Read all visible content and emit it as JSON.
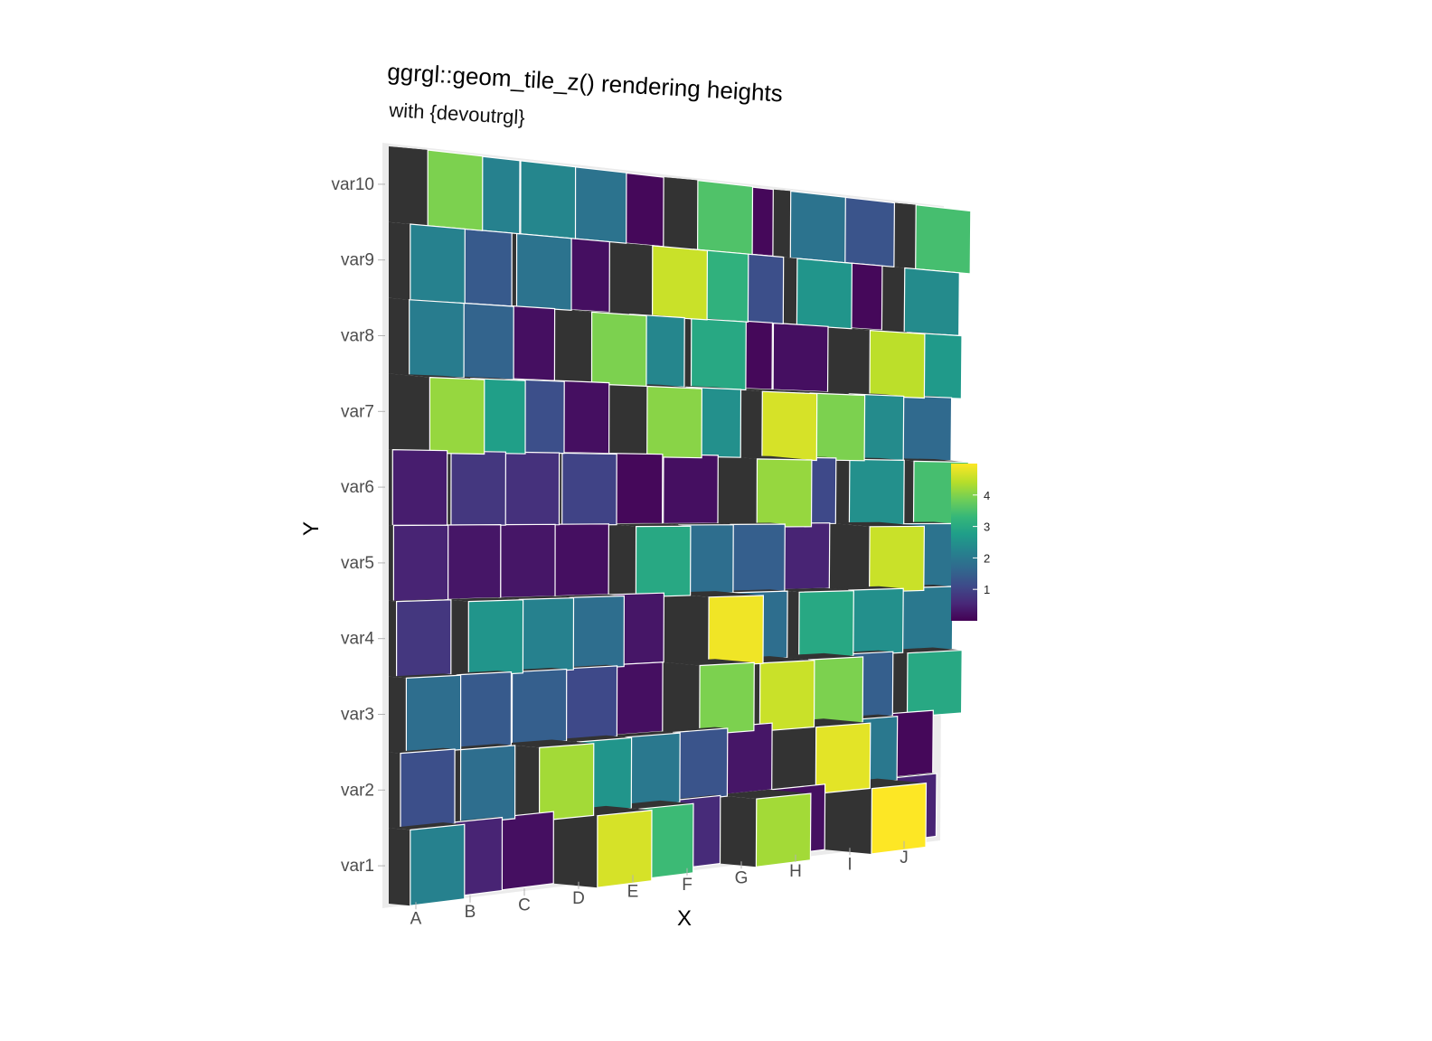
{
  "chart_data": {
    "type": "heatmap",
    "title": "ggrgl::geom_tile_z() rendering heights",
    "subtitle": "with {devoutrgl}",
    "xlabel": "X",
    "ylabel": "Y",
    "x_categories": [
      "A",
      "B",
      "C",
      "D",
      "E",
      "F",
      "G",
      "H",
      "I",
      "J"
    ],
    "y_categories": [
      "var1",
      "var2",
      "var3",
      "var4",
      "var5",
      "var6",
      "var7",
      "var8",
      "var9",
      "var10"
    ],
    "values": [
      [
        2.2,
        0.5,
        0.2,
        4.7,
        3.4,
        0.6,
        4.3,
        0.2,
        5.0,
        0.5
      ],
      [
        1.2,
        1.8,
        4.3,
        2.6,
        2.0,
        1.3,
        0.3,
        4.8,
        2.0,
        0.1
      ],
      [
        1.8,
        1.4,
        1.5,
        1.1,
        0.2,
        4.0,
        4.6,
        4.0,
        1.5,
        3.0
      ],
      [
        0.8,
        2.6,
        2.2,
        1.8,
        0.3,
        4.9,
        1.8,
        3.0,
        2.5,
        2.0
      ],
      [
        0.5,
        0.3,
        0.3,
        0.2,
        3.0,
        1.8,
        1.5,
        0.5,
        4.6,
        1.9
      ],
      [
        0.4,
        0.8,
        0.7,
        1.0,
        0.1,
        0.2,
        4.2,
        1.1,
        2.5,
        3.5
      ],
      [
        4.2,
        2.8,
        1.2,
        0.2,
        4.1,
        2.5,
        4.7,
        4.0,
        2.4,
        1.7
      ],
      [
        2.1,
        1.6,
        0.2,
        4.0,
        2.3,
        3.0,
        0.1,
        0.2,
        4.5,
        2.7
      ],
      [
        2.2,
        1.4,
        1.9,
        0.2,
        4.6,
        3.2,
        1.2,
        2.6,
        0.1,
        2.4
      ],
      [
        4.0,
        2.2,
        2.3,
        1.9,
        0.1,
        3.6,
        0.1,
        1.9,
        1.3,
        3.5
      ]
    ],
    "legend": {
      "ticks": [
        "1",
        "2",
        "3",
        "4"
      ],
      "range": [
        0,
        5
      ],
      "placement": "right"
    },
    "palette": [
      "#440154",
      "#482878",
      "#3e4a89",
      "#31688e",
      "#26828e",
      "#1f9e89",
      "#35b779",
      "#6ece58",
      "#b5de2b",
      "#fde725"
    ],
    "side_color": "#333333",
    "panel_color": "#ebebeb"
  }
}
